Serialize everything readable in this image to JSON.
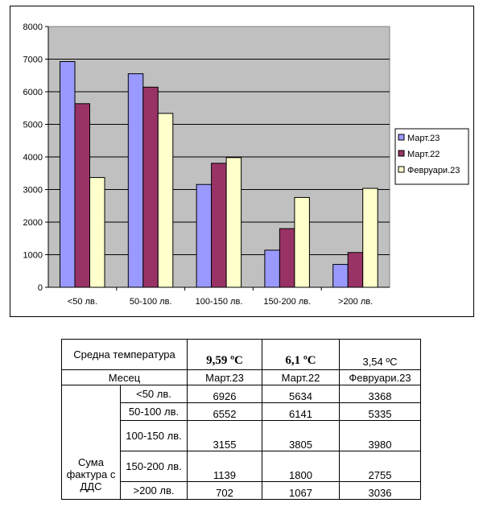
{
  "chart_data": {
    "type": "bar",
    "categories": [
      "<50 лв.",
      "50-100 лв.",
      "100-150 лв.",
      "150-200 лв.",
      ">200 лв."
    ],
    "series": [
      {
        "name": "Март.23",
        "values": [
          6926,
          6552,
          3155,
          1139,
          702
        ],
        "color": "#9999ff"
      },
      {
        "name": "Март.22",
        "values": [
          5634,
          6141,
          3805,
          1800,
          1067
        ],
        "color": "#993366"
      },
      {
        "name": "Февруари.23",
        "values": [
          3368,
          5335,
          3980,
          2755,
          3036
        ],
        "color": "#ffffcc"
      }
    ],
    "ylim": [
      0,
      8000
    ],
    "yticks": [
      0,
      1000,
      2000,
      3000,
      4000,
      5000,
      6000,
      7000,
      8000
    ],
    "grid": true,
    "plot_background": "#c0c0c0",
    "legend_position": "right"
  },
  "table": {
    "temp_label": "Средна температура",
    "temps": [
      "9,59 ºC",
      "6,1 ºC",
      "3,54 ºC"
    ],
    "month_label": "Месец",
    "months": [
      "Март.23",
      "Март.22",
      "Февруари.23"
    ],
    "group_label": "Сума фактура с ДДС",
    "rows": [
      {
        "range": "<50 лв.",
        "values": [
          "6926",
          "5634",
          "3368"
        ]
      },
      {
        "range": "50-100 лв.",
        "values": [
          "6552",
          "6141",
          "5335"
        ]
      },
      {
        "range": "100-150 лв.",
        "values": [
          "3155",
          "3805",
          "3980"
        ]
      },
      {
        "range": "150-200 лв.",
        "values": [
          "1139",
          "1800",
          "2755"
        ]
      },
      {
        "range": ">200 лв.",
        "values": [
          "702",
          "1067",
          "3036"
        ]
      }
    ]
  }
}
